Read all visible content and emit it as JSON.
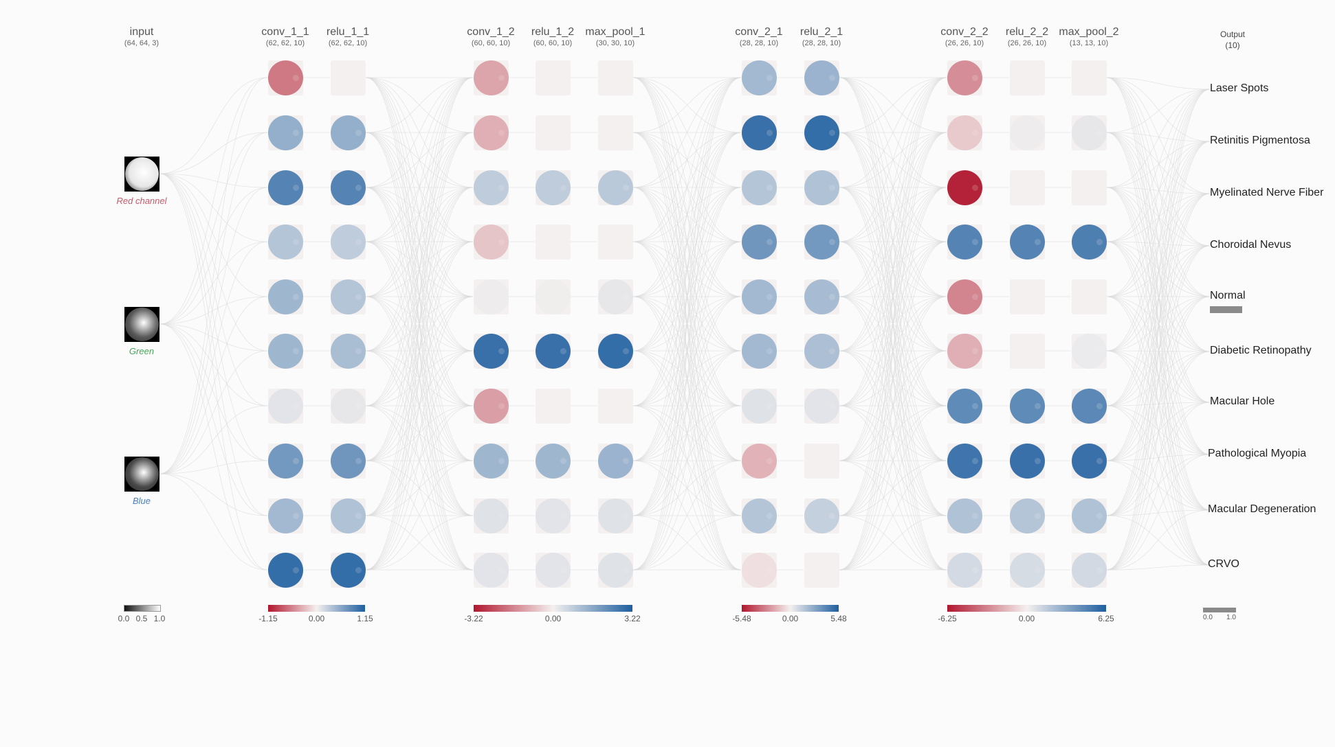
{
  "network": {
    "input_layer": {
      "name": "input",
      "shape": "(64, 64, 3)",
      "channels": [
        {
          "label": "Red channel",
          "color": "#c65a6a",
          "fill": "#e6e6e6"
        },
        {
          "label": "Green",
          "color": "#4aa55a",
          "fill": "#5a5a5a"
        },
        {
          "label": "Blue",
          "color": "#4a80c0",
          "fill": "#4a4a4a"
        }
      ],
      "scale": {
        "ticks": [
          "0.0",
          "0.5",
          "1.0"
        ]
      }
    },
    "groups": [
      {
        "scale": {
          "min": "-1.15",
          "mid": "0.00",
          "max": "1.15"
        },
        "layers": [
          {
            "name": "conv_1_1",
            "shape": "(62, 62, 10)",
            "maps": [
              -0.55,
              0.45,
              0.75,
              0.3,
              0.4,
              0.4,
              0.08,
              0.6,
              0.38,
              0.9
            ]
          },
          {
            "name": "relu_1_1",
            "shape": "(62, 62, 10)",
            "maps": [
              0.0,
              0.45,
              0.75,
              0.25,
              0.3,
              0.35,
              0.06,
              0.62,
              0.32,
              0.9
            ]
          }
        ]
      },
      {
        "scale": {
          "min": "-3.22",
          "mid": "0.00",
          "max": "3.22"
        },
        "layers": [
          {
            "name": "conv_1_2",
            "shape": "(60, 60, 10)",
            "maps": [
              -0.35,
              -0.3,
              0.25,
              -0.2,
              0.03,
              0.88,
              -0.38,
              0.4,
              0.1,
              0.08
            ]
          },
          {
            "name": "relu_1_2",
            "shape": "(60, 60, 10)",
            "maps": [
              0.0,
              0.0,
              0.25,
              0.0,
              0.02,
              0.88,
              0.0,
              0.4,
              0.08,
              0.08
            ]
          },
          {
            "name": "max_pool_1",
            "shape": "(30, 30, 10)",
            "maps": [
              0.0,
              0.0,
              0.27,
              0.0,
              0.06,
              0.9,
              0.0,
              0.42,
              0.1,
              0.1
            ]
          }
        ]
      },
      {
        "scale": {
          "min": "-5.48",
          "mid": "0.00",
          "max": "5.48"
        },
        "layers": [
          {
            "name": "conv_2_1",
            "shape": "(28, 28, 10)",
            "maps": [
              0.38,
              0.88,
              0.3,
              0.62,
              0.38,
              0.38,
              0.1,
              -0.28,
              0.3,
              -0.08
            ]
          },
          {
            "name": "relu_2_1",
            "shape": "(28, 28, 10)",
            "maps": [
              0.42,
              0.9,
              0.32,
              0.6,
              0.36,
              0.34,
              0.08,
              0.0,
              0.22,
              0.0
            ]
          }
        ]
      },
      {
        "scale": {
          "min": "-6.25",
          "mid": "0.00",
          "max": "6.25"
        },
        "layers": [
          {
            "name": "conv_2_2",
            "shape": "(26, 26, 10)",
            "maps": [
              -0.45,
              -0.18,
              -0.95,
              0.75,
              -0.5,
              -0.3,
              0.7,
              0.85,
              0.32,
              0.15
            ]
          },
          {
            "name": "relu_2_2",
            "shape": "(26, 26, 10)",
            "maps": [
              0.0,
              0.03,
              0.0,
              0.75,
              0.0,
              0.0,
              0.7,
              0.88,
              0.3,
              0.14
            ]
          },
          {
            "name": "max_pool_2",
            "shape": "(13, 13, 10)",
            "maps": [
              0.0,
              0.06,
              0.0,
              0.78,
              0.0,
              0.04,
              0.72,
              0.88,
              0.32,
              0.16
            ]
          }
        ]
      }
    ],
    "output_layer": {
      "name": "Output",
      "shape": "(10)",
      "classes": [
        {
          "label": "Laser Spots",
          "prob": 0.0
        },
        {
          "label": "Retinitis Pigmentosa",
          "prob": 0.0
        },
        {
          "label": "Myelinated Nerve Fiber",
          "prob": 0.0
        },
        {
          "label": "Choroidal Nevus",
          "prob": 0.0
        },
        {
          "label": "Normal",
          "prob": 0.98
        },
        {
          "label": "Diabetic Retinopathy",
          "prob": 0.0
        },
        {
          "label": "Macular Hole",
          "prob": 0.0
        },
        {
          "label": "Pathological Myopia",
          "prob": 0.0
        },
        {
          "label": "Macular Degeneration",
          "prob": 0.0
        },
        {
          "label": "CRVO",
          "prob": 0.0
        }
      ],
      "scale": {
        "min": "0.0",
        "max": "1.0"
      }
    },
    "colors": {
      "negative": "#b0172e",
      "neutral": "#f4f0ef",
      "positive": "#1f5fa0",
      "edge": "#dcdcdc",
      "bar": "#8a8a8a"
    }
  }
}
